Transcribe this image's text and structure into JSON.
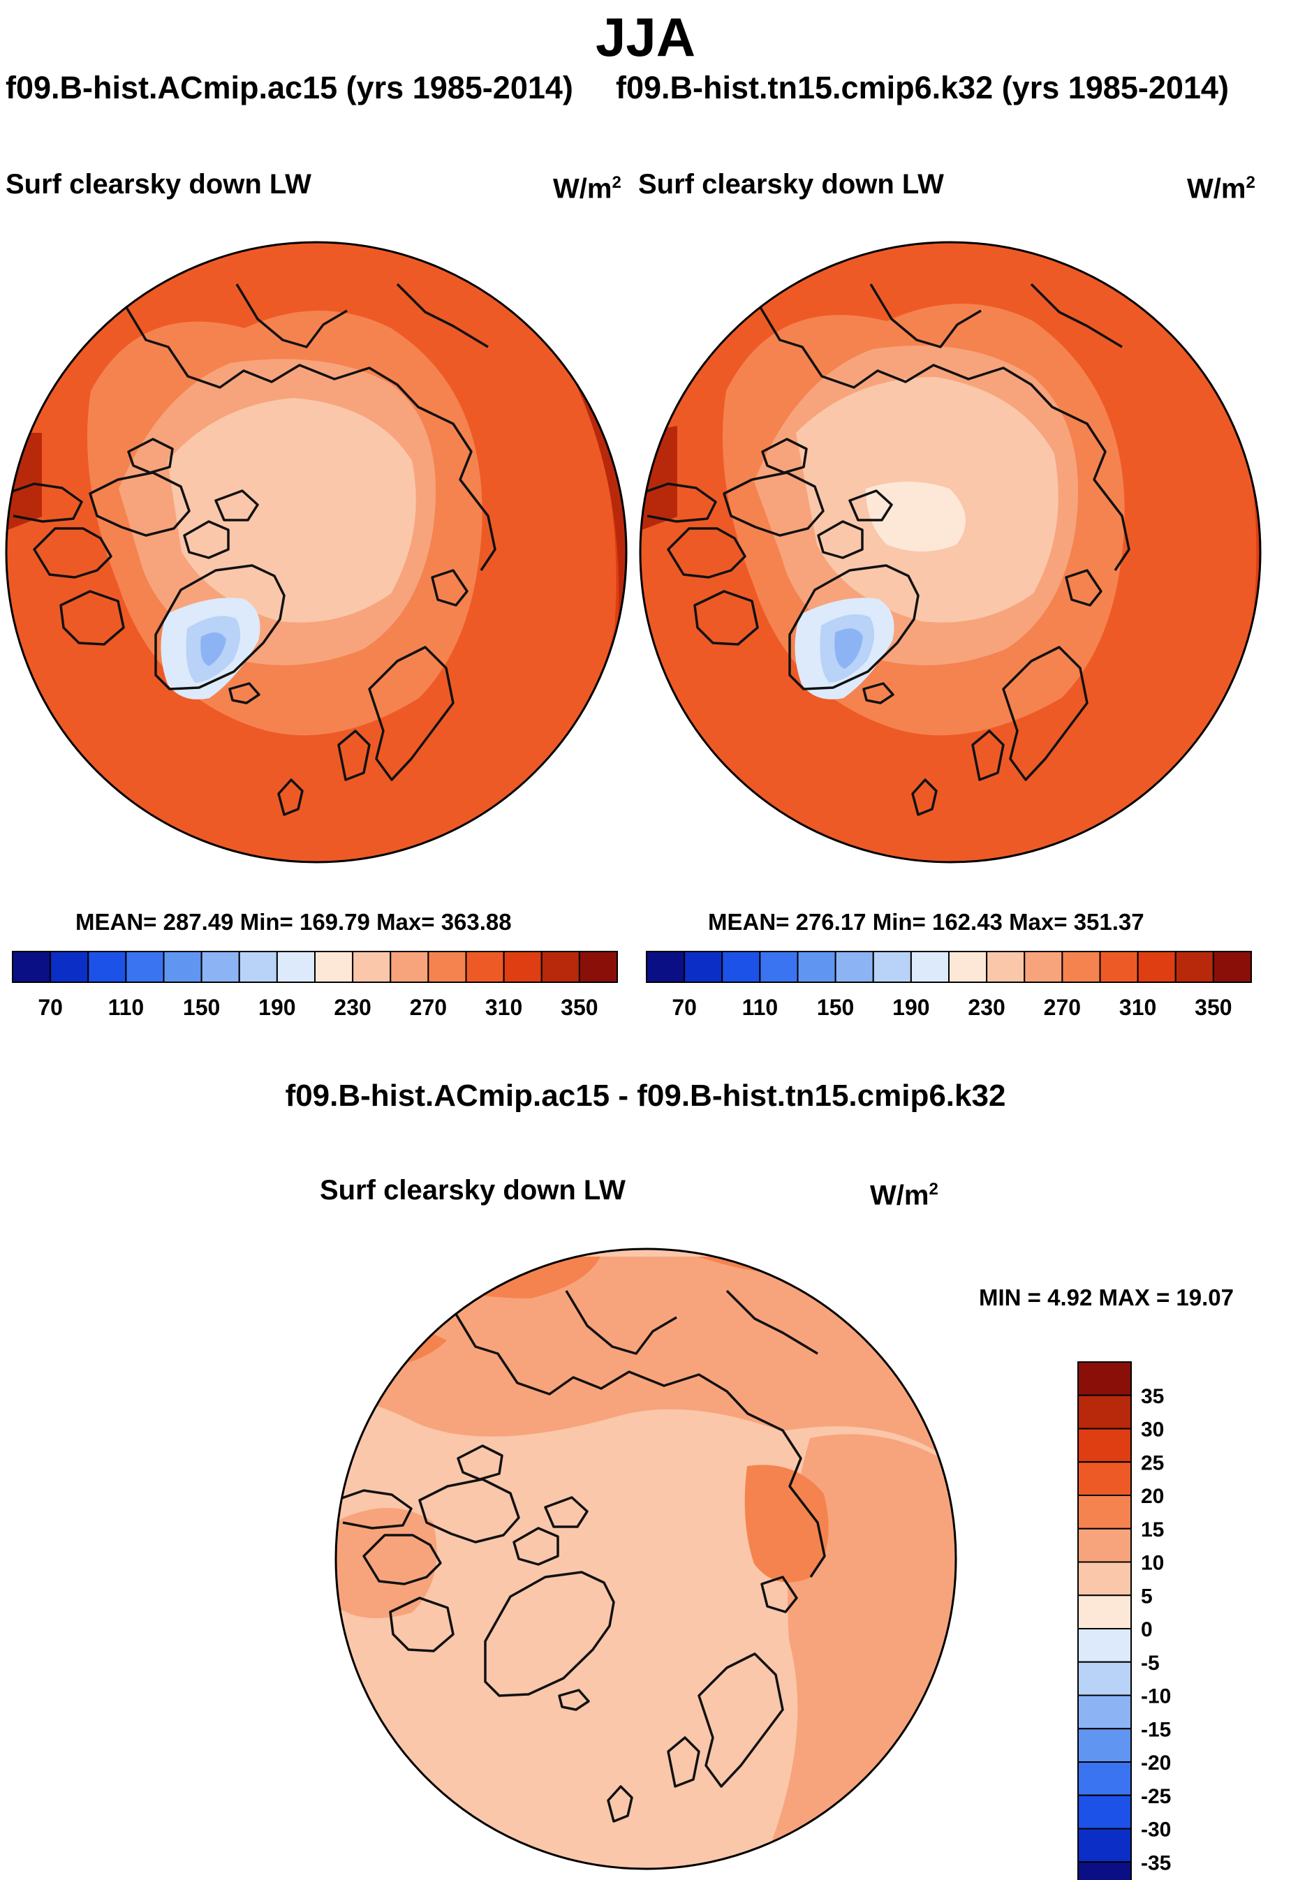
{
  "season": "JJA",
  "panels": [
    {
      "case_title": "f09.B-hist.ACmip.ac15 (yrs 1985-2014)",
      "variable": "Surf clearsky down LW",
      "units": "W/m",
      "units_sup": "2",
      "stats": "MEAN= 287.49  Min= 169.79  Max= 363.88"
    },
    {
      "case_title": "f09.B-hist.tn15.cmip6.k32 (yrs 1985-2014)",
      "variable": "Surf clearsky down LW",
      "units": "W/m",
      "units_sup": "2",
      "stats": "MEAN= 276.17  Min= 162.43  Max= 351.37"
    }
  ],
  "top_colorbar": {
    "colors": [
      "#0a0f85",
      "#0b2fc6",
      "#1d52e8",
      "#3a74f0",
      "#6195f2",
      "#8cb4f5",
      "#b9d2f7",
      "#dceafb",
      "#fde8d8",
      "#fac7aa",
      "#f7a47c",
      "#f5834f",
      "#ee5a26",
      "#df3d12",
      "#b8290c",
      "#8a0f09"
    ],
    "tick_labels": [
      "70",
      "110",
      "150",
      "190",
      "230",
      "270",
      "310",
      "350"
    ]
  },
  "diff": {
    "title": "f09.B-hist.ACmip.ac15 - f09.B-hist.tn15.cmip6.k32",
    "variable": "Surf clearsky down LW",
    "units": "W/m",
    "units_sup": "2",
    "minmax": "MIN =   4.92 MAX =  19.07",
    "colorbar": {
      "colors": [
        "#8a0f09",
        "#b8290c",
        "#df3d12",
        "#ee5a26",
        "#f5834f",
        "#f7a47c",
        "#fac7aa",
        "#fde8d8",
        "#dceafb",
        "#b9d2f7",
        "#8cb4f5",
        "#6195f2",
        "#3a74f0",
        "#1d52e8",
        "#0b2fc6",
        "#0a0f85"
      ],
      "tick_labels": [
        "35",
        "30",
        "25",
        "20",
        "15",
        "10",
        "5",
        "0",
        "-5",
        "-10",
        "-15",
        "-20",
        "-25",
        "-30",
        "-35"
      ]
    }
  }
}
